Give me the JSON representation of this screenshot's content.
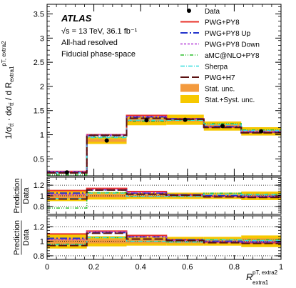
{
  "chart_data": {
    "type": "step-histogram-with-ratio",
    "experiment": "ATLAS",
    "annotations": [
      "√s = 13 TeV, 36.1 fb⁻¹",
      "All-had resolved",
      "Fiducial phase-space"
    ],
    "ylabel_main": "1/σ_tt̄ · dσ_tt̄ / d R_extra1^{pT, extra2}",
    "ylabel_main_parts": {
      "prefix": "1/σ",
      "sub1": "tt̄",
      "mid": " · dσ",
      "sub2": "tt̄",
      "suffix": " / d R",
      "sub3": "extra1",
      "sup3": "pT, extra2"
    },
    "ylabel_ratio": {
      "top": "Prediction",
      "bottom": "Data"
    },
    "xlabel_parts": {
      "base": "R",
      "sub": "extra1",
      "sup": "pT, extra2"
    },
    "x_edges": [
      0,
      0.17,
      0.34,
      0.51,
      0.67,
      0.83,
      1.0
    ],
    "xlim": [
      0,
      1
    ],
    "xticks": [
      0,
      0.2,
      0.4,
      0.6,
      0.8,
      1
    ],
    "xtick_labels": [
      "0",
      "0.2",
      "0.4",
      "0.6",
      "0.8",
      "1"
    ],
    "main": {
      "ylim": [
        0.15,
        3.7
      ],
      "yticks": [
        0.5,
        1,
        1.5,
        2,
        2.5,
        3,
        3.5
      ],
      "ytick_labels": [
        "0.5",
        "1",
        "1.5",
        "2",
        "2.5",
        "3",
        "3.5"
      ]
    },
    "ratio1": {
      "ylim": [
        0.65,
        1.35
      ],
      "yticks": [
        0.8,
        1,
        1.2
      ],
      "ytick_labels": [
        "0.8",
        "1",
        "1.2"
      ],
      "dotted": [
        0.8,
        1,
        1.2
      ]
    },
    "ratio2": {
      "ylim": [
        0.75,
        1.35
      ],
      "yticks": [
        0.8,
        1,
        1.2
      ],
      "ytick_labels": [
        "0.8",
        "1",
        "1.2"
      ],
      "dotted": [
        0.8,
        1,
        1.2
      ]
    },
    "data_points": {
      "name": "Data",
      "x": [
        0.085,
        0.255,
        0.425,
        0.59,
        0.75,
        0.915
      ],
      "y": [
        0.22,
        0.88,
        1.3,
        1.31,
        1.18,
        1.07
      ]
    },
    "uncertainty_bands": [
      {
        "name": "Stat. unc.",
        "color": "#f39a3e",
        "rel_main": 0.03,
        "r1_rel": [
          0.05,
          0.03,
          0.03,
          0.03,
          0.03,
          0.04
        ],
        "r2_rel": [
          0.05,
          0.03,
          0.03,
          0.03,
          0.03,
          0.04
        ]
      },
      {
        "name": "Stat.+Syst. unc.",
        "color": "#f6c800",
        "rel_main": 0.08,
        "r1_rel": [
          0.1,
          0.07,
          0.06,
          0.06,
          0.06,
          0.08
        ],
        "r2_rel": [
          0.1,
          0.07,
          0.06,
          0.06,
          0.06,
          0.08
        ]
      }
    ],
    "series": [
      {
        "name": "PWG+PY8",
        "color": "#e8322a",
        "dash": "",
        "width": 2,
        "main": [
          0.24,
          1.0,
          1.4,
          1.33,
          1.16,
          1.05
        ],
        "r1": [
          1.1,
          1.14,
          1.08,
          1.02,
          0.99,
          0.98
        ],
        "r2": [
          1.1,
          1.14,
          1.08,
          1.02,
          0.99,
          0.98
        ]
      },
      {
        "name": "PWG+PY8 Up",
        "color": "#2233cc",
        "dash": "10,3,2,3",
        "width": 2,
        "main": [
          0.23,
          0.98,
          1.37,
          1.33,
          1.17,
          1.06
        ],
        "r1": [
          1.05,
          1.11,
          1.05,
          1.02,
          1.0,
          0.99
        ],
        "r2": [
          1.04,
          1.12,
          1.06,
          1.02,
          1.0,
          0.99
        ]
      },
      {
        "name": "PWG+PY8 Down",
        "color": "#b23cd8",
        "dash": "3,2",
        "width": 1.5,
        "main": [
          0.23,
          1.0,
          1.38,
          1.32,
          1.16,
          1.06
        ],
        "r1": [
          1.02,
          1.12,
          1.06,
          1.01,
          0.99,
          0.99
        ],
        "r2": [
          1.02,
          1.13,
          1.06,
          1.01,
          0.99,
          0.99
        ]
      },
      {
        "name": "aMC@NLO+PY8",
        "color": "#2fbf2f",
        "dash": "5,2,1,2,1,2",
        "width": 1.5,
        "main": [
          0.17,
          0.95,
          1.28,
          1.3,
          1.23,
          1.1
        ],
        "r1": [
          0.77,
          1.06,
          0.99,
          0.99,
          1.05,
          1.03
        ],
        "r2": [
          0.96,
          1.05,
          1.0,
          0.99,
          1.02,
          1.02
        ]
      },
      {
        "name": "Sherpa",
        "color": "#33dddd",
        "dash": "6,2,1,2",
        "width": 1.5,
        "main": [
          0.21,
          0.94,
          1.3,
          1.3,
          1.21,
          1.09
        ],
        "r1": [
          0.95,
          1.05,
          0.99,
          0.99,
          1.03,
          1.02
        ],
        "r2": [
          0.95,
          1.05,
          1.0,
          0.99,
          1.02,
          1.01
        ]
      },
      {
        "name": "PWG+H7",
        "color": "#5a1010",
        "dash": "12,4",
        "width": 2,
        "main": [
          0.21,
          0.99,
          1.34,
          1.32,
          1.15,
          1.04
        ],
        "r1": [
          0.94,
          1.11,
          1.03,
          1.01,
          0.98,
          0.97
        ],
        "r2": [
          0.94,
          1.11,
          1.03,
          1.01,
          0.98,
          0.97
        ]
      }
    ],
    "legend": {
      "placement": "top-right",
      "entries": [
        "Data",
        "PWG+PY8",
        "PWG+PY8 Up",
        "PWG+PY8 Down",
        "aMC@NLO+PY8",
        "Sherpa",
        "PWG+H7",
        "Stat. unc.",
        "Stat.+Syst. unc."
      ]
    },
    "grid": false
  }
}
